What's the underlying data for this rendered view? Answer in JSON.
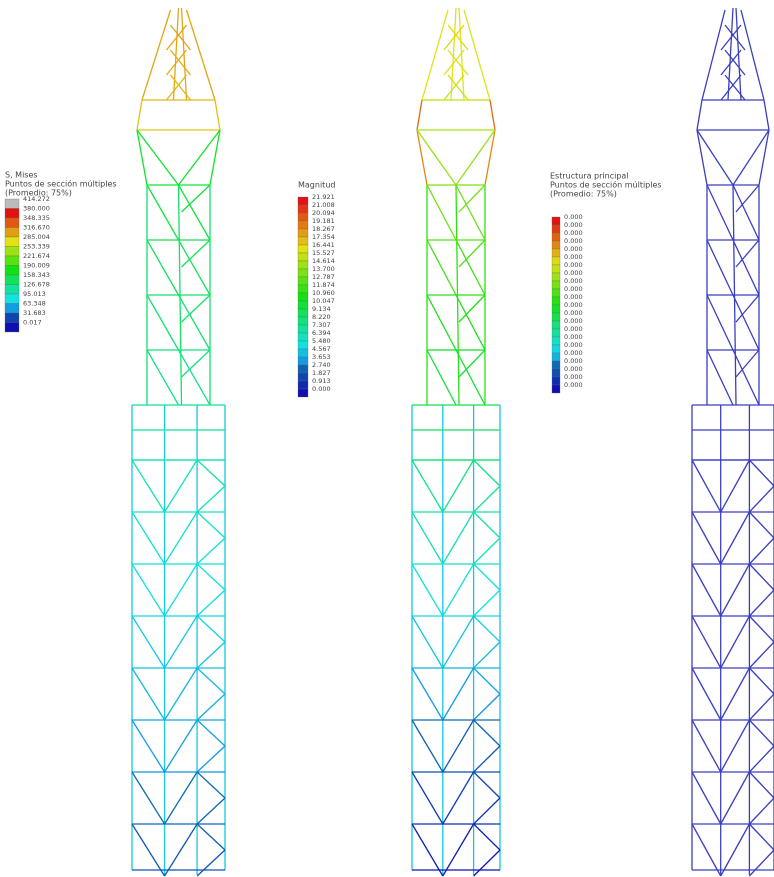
{
  "legends": [
    {
      "title": "S, Mises",
      "lines": [
        "Puntos de sección múltiples",
        "(Promedio: 75%)"
      ],
      "labels": [
        "414.272",
        "380.000",
        "348.335",
        "316.670",
        "285.004",
        "253.339",
        "221.674",
        "190.009",
        "158.343",
        "126.678",
        "95.013",
        "63.348",
        "31.683",
        "0.017"
      ]
    },
    {
      "title": "Magnitud",
      "lines": [],
      "labels": [
        "21.921",
        "21.008",
        "20.094",
        "19.181",
        "18.267",
        "17.354",
        "16.441",
        "15.527",
        "14.614",
        "13.700",
        "12.787",
        "11.874",
        "10.960",
        "10.047",
        "9.134",
        "8.220",
        "7.307",
        "6.394",
        "5.480",
        "4.567",
        "3.653",
        "2.740",
        "1.827",
        "0.913",
        "0.000"
      ]
    },
    {
      "title": "Estructura principal",
      "lines": [
        "Puntos de sección múltiples",
        "(Promedio: 75%)"
      ],
      "labels": [
        "0.000",
        "0.000",
        "0.000",
        "0.000",
        "0.000",
        "0.000",
        "0.000",
        "0.000",
        "0.000",
        "0.000",
        "0.000",
        "0.000",
        "0.000",
        "0.000",
        "0.000",
        "0.000",
        "0.000",
        "0.000",
        "0.000",
        "0.000",
        "0.000",
        "0.000"
      ]
    }
  ]
}
